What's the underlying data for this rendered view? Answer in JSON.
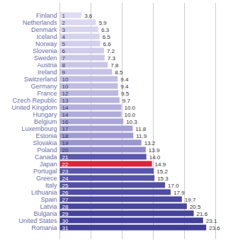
{
  "chart_data": {
    "type": "bar",
    "orientation": "horizontal",
    "categories": [
      "Finland",
      "Netherlands",
      "Denmark",
      "Iceland",
      "Norway",
      "Slovenia",
      "Sweden",
      "Austria",
      "Ireland",
      "Switzerland",
      "Germany",
      "France",
      "Czech Republic",
      "United Kingdom",
      "Hungary",
      "Belgium",
      "Luxembourg",
      "Estonia",
      "Slovakia",
      "Poland",
      "Canada",
      "Japan",
      "Portugal",
      "Greece",
      "Italy",
      "Lithuania",
      "Spain",
      "Latvia",
      "Bulgaria",
      "United States",
      "Romania"
    ],
    "ranks": [
      1,
      2,
      3,
      4,
      5,
      6,
      7,
      8,
      9,
      10,
      10,
      12,
      13,
      14,
      14,
      16,
      17,
      18,
      19,
      20,
      21,
      22,
      23,
      24,
      25,
      26,
      27,
      28,
      29,
      30,
      31
    ],
    "values": [
      3.6,
      5.9,
      6.3,
      6.5,
      6.6,
      7.2,
      7.3,
      7.8,
      8.5,
      9.4,
      9.4,
      9.5,
      9.7,
      10.0,
      10.0,
      10.3,
      11.8,
      11.9,
      13.2,
      13.9,
      14.0,
      14.9,
      15.2,
      15.3,
      17.0,
      17.9,
      19.7,
      20.5,
      21.6,
      23.1,
      23.6
    ],
    "value_labels": [
      "3.6",
      "5.9",
      "6.3",
      "6.5",
      "6.6",
      "7.2",
      "7.3",
      "7.8",
      "8.5",
      "9.4",
      "9.4",
      "9.5",
      "9.7",
      "10.0",
      "10.0",
      "10.3",
      "11.8",
      "11.9",
      "13.2",
      "13.9",
      "14.0",
      "14.9",
      "15.2",
      "15.3",
      "17.0",
      "17.9",
      "19.7",
      "20.5",
      "21.6",
      "23.1",
      "23.6"
    ],
    "colors": [
      "#dedbf1",
      "#dbd8ef",
      "#d8d5ee",
      "#d5d2ec",
      "#d2cfeb",
      "#cfcbe9",
      "#ccc8e8",
      "#c9c5e6",
      "#c6c2e5",
      "#c2bee3",
      "#bfbbe2",
      "#bbb7e0",
      "#b7b3de",
      "#b3afdc",
      "#afabda",
      "#aaa6d8",
      "#a5a1d5",
      "#9f9bd2",
      "#9995cf",
      "#908ccb",
      "#5a58a8",
      "#d7263d",
      "#5855aa",
      "#5552a7",
      "#524fa5",
      "#4f4ca2",
      "#4c49a0",
      "#49469d",
      "#46439a",
      "#434098",
      "#403d95"
    ],
    "xlim": [
      0,
      25
    ],
    "xticks": [
      0,
      5,
      10,
      15,
      20,
      25
    ],
    "grid": true,
    "data_labels": true,
    "tick_labels": "y"
  }
}
